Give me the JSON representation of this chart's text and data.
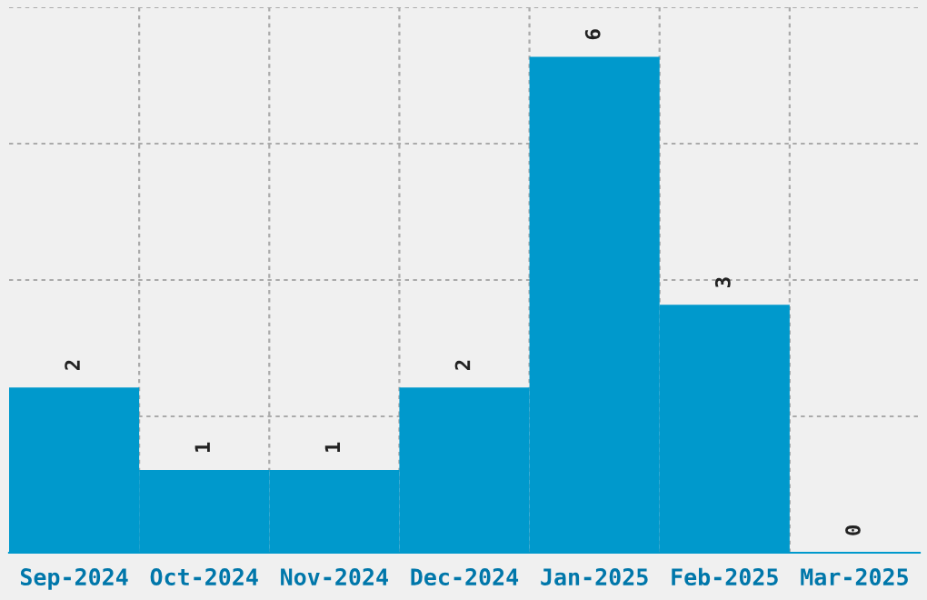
{
  "chart_data": {
    "type": "bar",
    "categories": [
      "Sep-2024",
      "Oct-2024",
      "Nov-2024",
      "Dec-2024",
      "Jan-2025",
      "Feb-2025",
      "Mar-2025"
    ],
    "values": [
      2,
      1,
      1,
      2,
      6,
      3,
      0
    ],
    "color": "#0099cc",
    "ylim": [
      0,
      6.6
    ],
    "yticks": [
      {
        "value": 1.65,
        "label": null
      },
      {
        "value": 3.3,
        "label": null
      },
      {
        "value": 4.95,
        "label": null
      },
      {
        "value": 6.6,
        "label": null
      }
    ],
    "grid": true,
    "data_labels": true,
    "tick_labels": "x"
  }
}
